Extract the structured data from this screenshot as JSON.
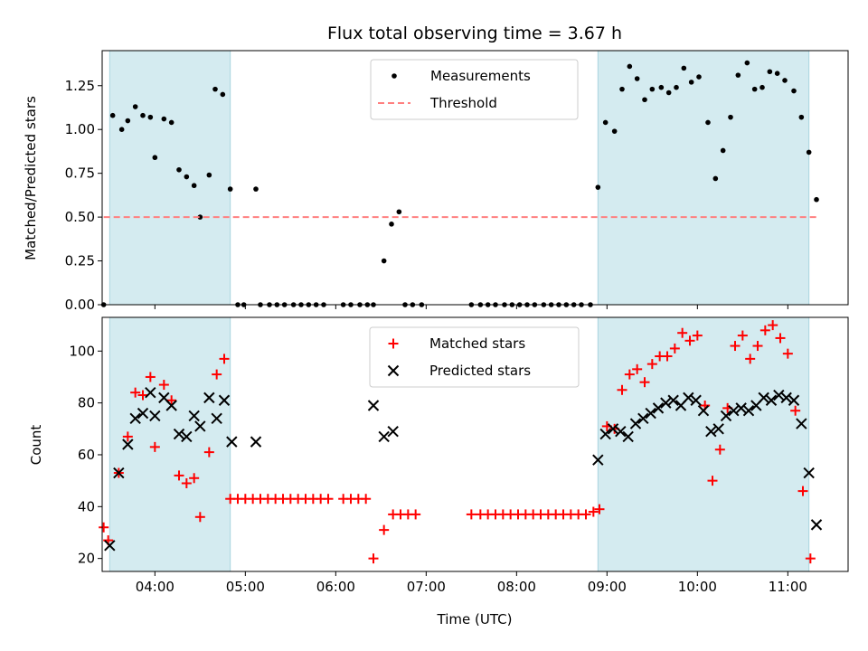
{
  "chart_data": [
    {
      "type": "scatter",
      "title": "Flux total observing time = 3.67 h",
      "xlabel": "",
      "ylabel": "Matched/Predicted stars",
      "xlim": [
        "03:25",
        "11:40"
      ],
      "ylim": [
        0,
        1.45
      ],
      "x_ticks": [
        "04:00",
        "05:00",
        "06:00",
        "07:00",
        "08:00",
        "09:00",
        "10:00",
        "11:00"
      ],
      "x_tick_labels_shown": false,
      "y_ticks": [
        0.0,
        0.25,
        0.5,
        0.75,
        1.0,
        1.25
      ],
      "y_tick_labels": [
        "0.00",
        "0.25",
        "0.50",
        "0.75",
        "1.00",
        "1.25"
      ],
      "grid": false,
      "legend_position": "top-center",
      "shaded_intervals": [
        [
          "03:30",
          "04:50"
        ],
        [
          "08:54",
          "11:14"
        ]
      ],
      "shade_color": "#d4ebf0",
      "series": [
        {
          "name": "Measurements",
          "marker": "dot",
          "color": "#000000",
          "points": [
            [
              "03:26",
              0.0
            ],
            [
              "03:32",
              1.08
            ],
            [
              "03:38",
              1.0
            ],
            [
              "03:42",
              1.05
            ],
            [
              "03:47",
              1.13
            ],
            [
              "03:52",
              1.08
            ],
            [
              "03:57",
              1.07
            ],
            [
              "04:00",
              0.84
            ],
            [
              "04:06",
              1.06
            ],
            [
              "04:11",
              1.04
            ],
            [
              "04:16",
              0.77
            ],
            [
              "04:21",
              0.73
            ],
            [
              "04:26",
              0.68
            ],
            [
              "04:30",
              0.5
            ],
            [
              "04:36",
              0.74
            ],
            [
              "04:40",
              1.23
            ],
            [
              "04:45",
              1.2
            ],
            [
              "04:50",
              0.66
            ],
            [
              "04:55",
              0.0
            ],
            [
              "04:59",
              0.0
            ],
            [
              "05:07",
              0.66
            ],
            [
              "05:10",
              0.0
            ],
            [
              "05:16",
              0.0
            ],
            [
              "05:21",
              0.0
            ],
            [
              "05:26",
              0.0
            ],
            [
              "05:32",
              0.0
            ],
            [
              "05:37",
              0.0
            ],
            [
              "05:42",
              0.0
            ],
            [
              "05:47",
              0.0
            ],
            [
              "05:52",
              0.0
            ],
            [
              "06:05",
              0.0
            ],
            [
              "06:10",
              0.0
            ],
            [
              "06:16",
              0.0
            ],
            [
              "06:21",
              0.0
            ],
            [
              "06:25",
              0.0
            ],
            [
              "06:32",
              0.25
            ],
            [
              "06:37",
              0.46
            ],
            [
              "06:42",
              0.53
            ],
            [
              "06:46",
              0.0
            ],
            [
              "06:51",
              0.0
            ],
            [
              "06:57",
              0.0
            ],
            [
              "07:30",
              0.0
            ],
            [
              "07:36",
              0.0
            ],
            [
              "07:41",
              0.0
            ],
            [
              "07:46",
              0.0
            ],
            [
              "07:52",
              0.0
            ],
            [
              "07:57",
              0.0
            ],
            [
              "08:02",
              0.0
            ],
            [
              "08:07",
              0.0
            ],
            [
              "08:12",
              0.0
            ],
            [
              "08:18",
              0.0
            ],
            [
              "08:23",
              0.0
            ],
            [
              "08:28",
              0.0
            ],
            [
              "08:33",
              0.0
            ],
            [
              "08:38",
              0.0
            ],
            [
              "08:43",
              0.0
            ],
            [
              "08:49",
              0.0
            ],
            [
              "08:54",
              0.67
            ],
            [
              "08:59",
              1.04
            ],
            [
              "09:05",
              0.99
            ],
            [
              "09:10",
              1.23
            ],
            [
              "09:15",
              1.36
            ],
            [
              "09:20",
              1.29
            ],
            [
              "09:25",
              1.17
            ],
            [
              "09:30",
              1.23
            ],
            [
              "09:36",
              1.24
            ],
            [
              "09:41",
              1.21
            ],
            [
              "09:46",
              1.24
            ],
            [
              "09:51",
              1.35
            ],
            [
              "09:56",
              1.27
            ],
            [
              "10:01",
              1.3
            ],
            [
              "10:07",
              1.04
            ],
            [
              "10:12",
              0.72
            ],
            [
              "10:17",
              0.88
            ],
            [
              "10:22",
              1.07
            ],
            [
              "10:27",
              1.31
            ],
            [
              "10:33",
              1.38
            ],
            [
              "10:38",
              1.23
            ],
            [
              "10:43",
              1.24
            ],
            [
              "10:48",
              1.33
            ],
            [
              "10:53",
              1.32
            ],
            [
              "10:58",
              1.28
            ],
            [
              "11:04",
              1.22
            ],
            [
              "11:09",
              1.07
            ],
            [
              "11:14",
              0.87
            ],
            [
              "11:19",
              0.6
            ]
          ]
        },
        {
          "name": "Threshold",
          "style": "dashed-line",
          "color": "#ff7f7f",
          "x_range": [
            "03:26",
            "11:19"
          ],
          "value": 0.5
        }
      ]
    },
    {
      "type": "scatter",
      "title": "",
      "xlabel": "Time (UTC)",
      "ylabel": "Count",
      "xlim": [
        "03:25",
        "11:40"
      ],
      "ylim": [
        15,
        113
      ],
      "x_ticks": [
        "04:00",
        "05:00",
        "06:00",
        "07:00",
        "08:00",
        "09:00",
        "10:00",
        "11:00"
      ],
      "y_ticks": [
        20,
        40,
        60,
        80,
        100
      ],
      "y_tick_labels": [
        "20",
        "40",
        "60",
        "80",
        "100"
      ],
      "grid": false,
      "legend_position": "top-center",
      "shaded_intervals": [
        [
          "03:30",
          "04:50"
        ],
        [
          "08:54",
          "11:14"
        ]
      ],
      "shade_color": "#d4ebf0",
      "series": [
        {
          "name": "Matched stars",
          "marker": "plus",
          "color": "#ff0000",
          "points": [
            [
              "03:26",
              32
            ],
            [
              "03:29",
              27
            ],
            [
              "03:36",
              53
            ],
            [
              "03:42",
              67
            ],
            [
              "03:47",
              84
            ],
            [
              "03:52",
              83
            ],
            [
              "03:57",
              90
            ],
            [
              "04:00",
              63
            ],
            [
              "04:06",
              87
            ],
            [
              "04:11",
              81
            ],
            [
              "04:16",
              52
            ],
            [
              "04:21",
              49
            ],
            [
              "04:26",
              51
            ],
            [
              "04:30",
              36
            ],
            [
              "04:36",
              61
            ],
            [
              "04:41",
              91
            ],
            [
              "04:46",
              97
            ],
            [
              "04:50",
              43
            ],
            [
              "04:55",
              43
            ],
            [
              "05:00",
              43
            ],
            [
              "05:05",
              43
            ],
            [
              "05:10",
              43
            ],
            [
              "05:15",
              43
            ],
            [
              "05:20",
              43
            ],
            [
              "05:25",
              43
            ],
            [
              "05:30",
              43
            ],
            [
              "05:35",
              43
            ],
            [
              "05:40",
              43
            ],
            [
              "05:45",
              43
            ],
            [
              "05:50",
              43
            ],
            [
              "05:55",
              43
            ],
            [
              "06:05",
              43
            ],
            [
              "06:10",
              43
            ],
            [
              "06:15",
              43
            ],
            [
              "06:20",
              43
            ],
            [
              "06:25",
              20
            ],
            [
              "06:32",
              31
            ],
            [
              "06:38",
              37
            ],
            [
              "06:43",
              37
            ],
            [
              "06:48",
              37
            ],
            [
              "06:53",
              37
            ],
            [
              "07:30",
              37
            ],
            [
              "07:36",
              37
            ],
            [
              "07:41",
              37
            ],
            [
              "07:46",
              37
            ],
            [
              "07:51",
              37
            ],
            [
              "07:56",
              37
            ],
            [
              "08:01",
              37
            ],
            [
              "08:06",
              37
            ],
            [
              "08:11",
              37
            ],
            [
              "08:16",
              37
            ],
            [
              "08:21",
              37
            ],
            [
              "08:26",
              37
            ],
            [
              "08:31",
              37
            ],
            [
              "08:36",
              37
            ],
            [
              "08:41",
              37
            ],
            [
              "08:46",
              37
            ],
            [
              "08:51",
              38
            ],
            [
              "08:55",
              39
            ],
            [
              "09:00",
              71
            ],
            [
              "09:05",
              70
            ],
            [
              "09:10",
              85
            ],
            [
              "09:15",
              91
            ],
            [
              "09:20",
              93
            ],
            [
              "09:25",
              88
            ],
            [
              "09:30",
              95
            ],
            [
              "09:35",
              98
            ],
            [
              "09:40",
              98
            ],
            [
              "09:45",
              101
            ],
            [
              "09:50",
              107
            ],
            [
              "09:55",
              104
            ],
            [
              "10:00",
              106
            ],
            [
              "10:05",
              79
            ],
            [
              "10:10",
              50
            ],
            [
              "10:15",
              62
            ],
            [
              "10:20",
              78
            ],
            [
              "10:25",
              102
            ],
            [
              "10:30",
              106
            ],
            [
              "10:35",
              97
            ],
            [
              "10:40",
              102
            ],
            [
              "10:45",
              108
            ],
            [
              "10:50",
              110
            ],
            [
              "10:55",
              105
            ],
            [
              "11:00",
              99
            ],
            [
              "11:05",
              77
            ],
            [
              "11:10",
              46
            ],
            [
              "11:15",
              20
            ]
          ]
        },
        {
          "name": "Predicted stars",
          "marker": "x",
          "color": "#000000",
          "points": [
            [
              "03:30",
              25
            ],
            [
              "03:36",
              53
            ],
            [
              "03:42",
              64
            ],
            [
              "03:47",
              74
            ],
            [
              "03:52",
              76
            ],
            [
              "03:57",
              84
            ],
            [
              "04:00",
              75
            ],
            [
              "04:06",
              82
            ],
            [
              "04:11",
              79
            ],
            [
              "04:16",
              68
            ],
            [
              "04:21",
              67
            ],
            [
              "04:26",
              75
            ],
            [
              "04:30",
              71
            ],
            [
              "04:36",
              82
            ],
            [
              "04:41",
              74
            ],
            [
              "04:46",
              81
            ],
            [
              "04:51",
              65
            ],
            [
              "05:07",
              65
            ],
            [
              "06:25",
              79
            ],
            [
              "06:32",
              67
            ],
            [
              "06:38",
              69
            ],
            [
              "08:54",
              58
            ],
            [
              "08:59",
              68
            ],
            [
              "09:04",
              70
            ],
            [
              "09:09",
              69
            ],
            [
              "09:14",
              67
            ],
            [
              "09:19",
              72
            ],
            [
              "09:24",
              74
            ],
            [
              "09:29",
              76
            ],
            [
              "09:34",
              78
            ],
            [
              "09:39",
              80
            ],
            [
              "09:44",
              81
            ],
            [
              "09:49",
              79
            ],
            [
              "09:54",
              82
            ],
            [
              "09:59",
              81
            ],
            [
              "10:04",
              77
            ],
            [
              "10:09",
              69
            ],
            [
              "10:14",
              70
            ],
            [
              "10:19",
              75
            ],
            [
              "10:24",
              77
            ],
            [
              "10:29",
              78
            ],
            [
              "10:34",
              77
            ],
            [
              "10:39",
              79
            ],
            [
              "10:44",
              82
            ],
            [
              "10:49",
              81
            ],
            [
              "10:54",
              83
            ],
            [
              "10:59",
              82
            ],
            [
              "11:04",
              81
            ],
            [
              "11:09",
              72
            ],
            [
              "11:14",
              53
            ],
            [
              "11:19",
              33
            ]
          ]
        }
      ]
    }
  ]
}
